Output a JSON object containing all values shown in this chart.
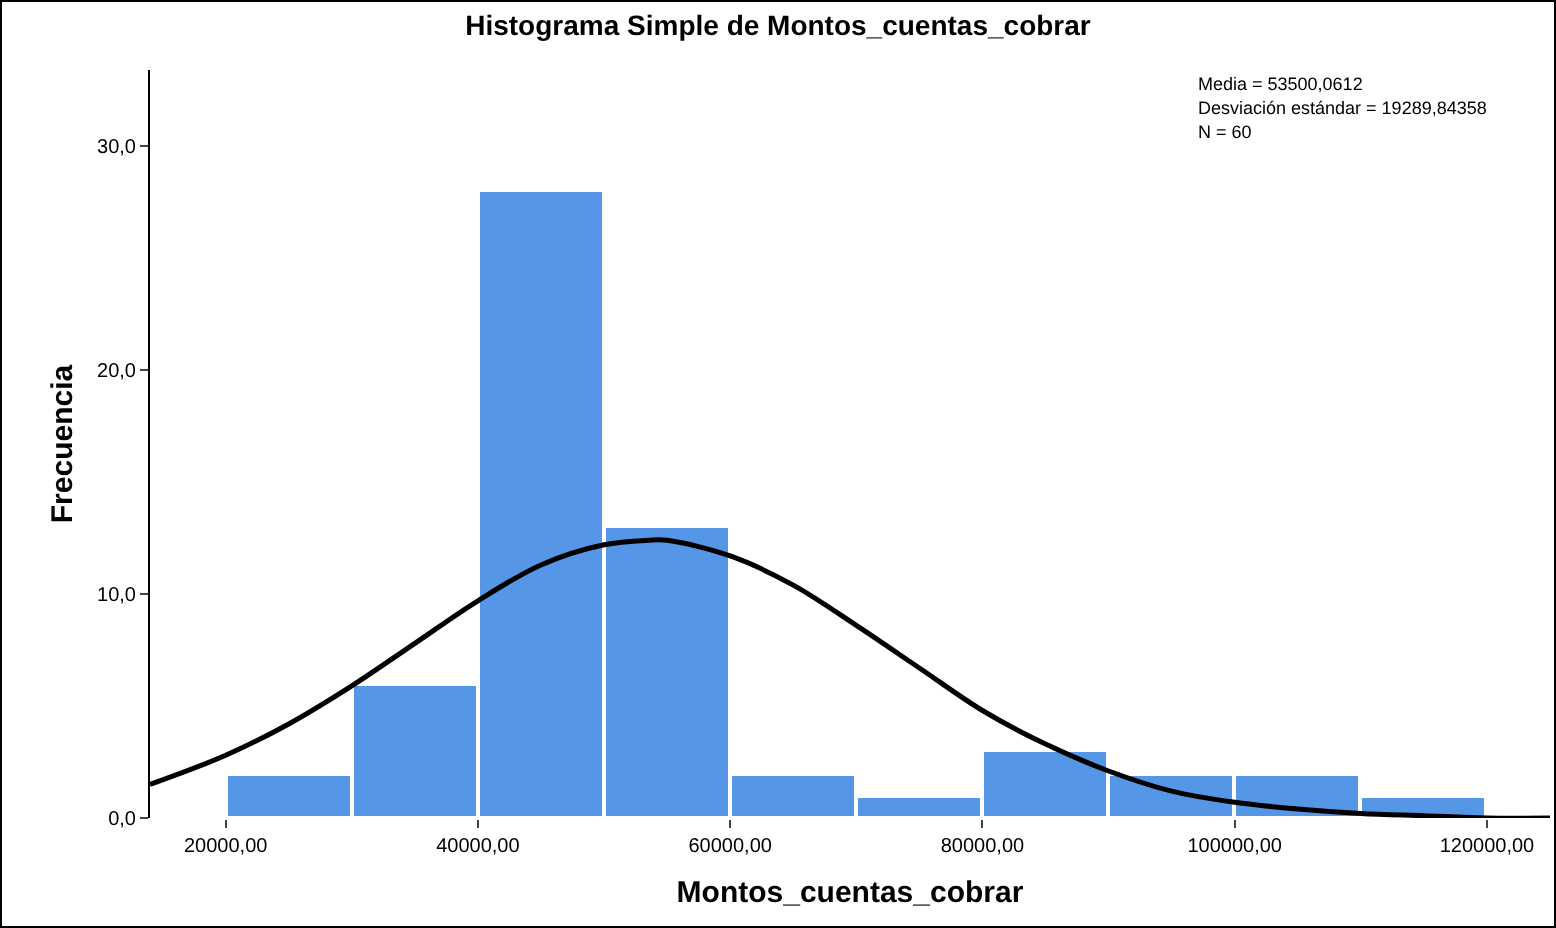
{
  "chart_data": {
    "type": "histogram",
    "title": "Histograma Simple de Montos_cuentas_cobrar",
    "xlabel": "Montos_cuentas_cobrar",
    "ylabel": "Frecuencia",
    "bins": [
      20000,
      30000,
      40000,
      50000,
      60000,
      70000,
      80000,
      90000,
      100000,
      110000,
      120000
    ],
    "values": [
      2,
      6,
      28,
      13,
      2,
      1,
      3,
      2,
      2,
      1
    ],
    "color": "#5596e6",
    "series": [
      {
        "type": "line",
        "color": "#000000",
        "x": [
          14000,
          20000,
          25000,
          30000,
          35000,
          40000,
          45000,
          50000,
          53500,
          55000,
          60000,
          65000,
          70000,
          75000,
          80000,
          85000,
          90000,
          95000,
          100000,
          105000,
          110000,
          115000,
          120000,
          125000
        ],
        "values": [
          1.5,
          2.8,
          4.2,
          5.9,
          7.8,
          9.7,
          11.3,
          12.2,
          12.4,
          12.4,
          11.7,
          10.4,
          8.6,
          6.7,
          4.8,
          3.3,
          2.1,
          1.2,
          0.7,
          0.4,
          0.2,
          0.1,
          0.0,
          0.0
        ]
      }
    ],
    "xlim": [
      14000,
      125000
    ],
    "ylim": [
      0,
      33.4
    ],
    "xticks": [
      {
        "value": 20000,
        "label": "20000,00"
      },
      {
        "value": 40000,
        "label": "40000,00"
      },
      {
        "value": 60000,
        "label": "60000,00"
      },
      {
        "value": 80000,
        "label": "80000,00"
      },
      {
        "value": 100000,
        "label": "100000,00"
      },
      {
        "value": 120000,
        "label": "120000,00"
      }
    ],
    "yticks": [
      {
        "value": 0,
        "label": "0,0"
      },
      {
        "value": 10,
        "label": "10,0"
      },
      {
        "value": 20,
        "label": "20,0"
      },
      {
        "value": 30,
        "label": "30,0"
      }
    ],
    "annotations": [
      "Media = 53500,0612",
      "Desviación estándar = 19289,84358",
      "N = 60"
    ],
    "grid": false,
    "marker": "none",
    "line_style": "solid"
  }
}
